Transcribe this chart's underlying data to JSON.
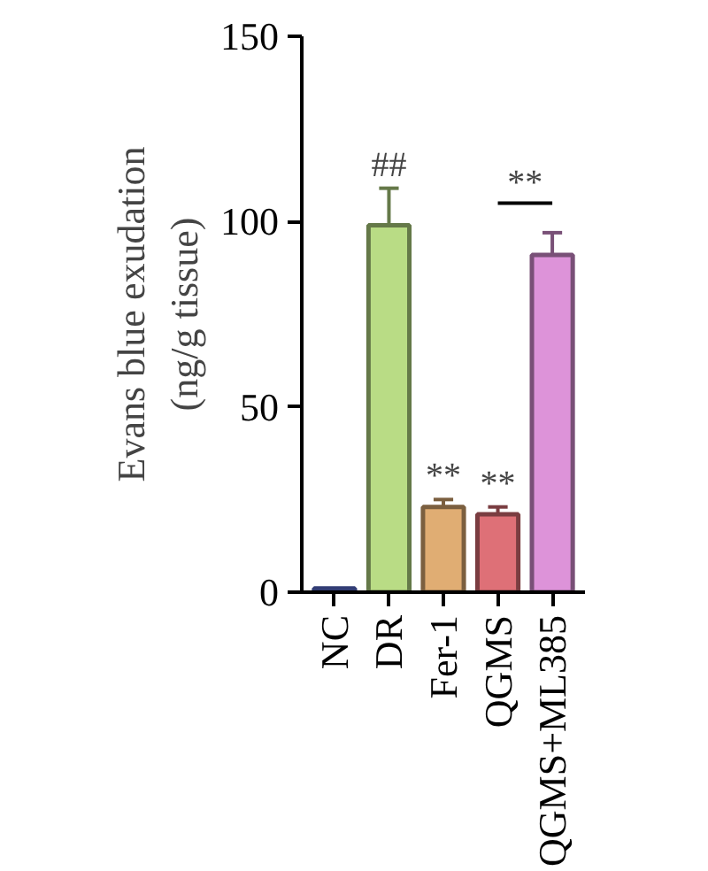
{
  "chart_data": {
    "type": "bar",
    "ylabel": "Evans blue exudation\n(ng/g tissue)",
    "categories": [
      "NC",
      "DR",
      "Fer-1",
      "QGMS",
      "QGMS+ML385"
    ],
    "values": [
      1,
      99,
      23,
      21,
      91
    ],
    "errors": [
      null,
      10,
      2,
      2,
      6
    ],
    "colors": [
      "#5b6fd6",
      "#b9dc85",
      "#e0ad73",
      "#de7077",
      "#dd93d9"
    ],
    "ylim": [
      0,
      150
    ],
    "yticks": [
      0,
      50,
      100,
      150
    ],
    "grid": false,
    "annotations": [
      {
        "text": "##",
        "x": "DR",
        "y": 109
      },
      {
        "text": "**",
        "x": "Fer-1",
        "y": 25
      },
      {
        "text": "**",
        "x": "QGMS",
        "y": 23
      },
      "**"
    ]
  }
}
